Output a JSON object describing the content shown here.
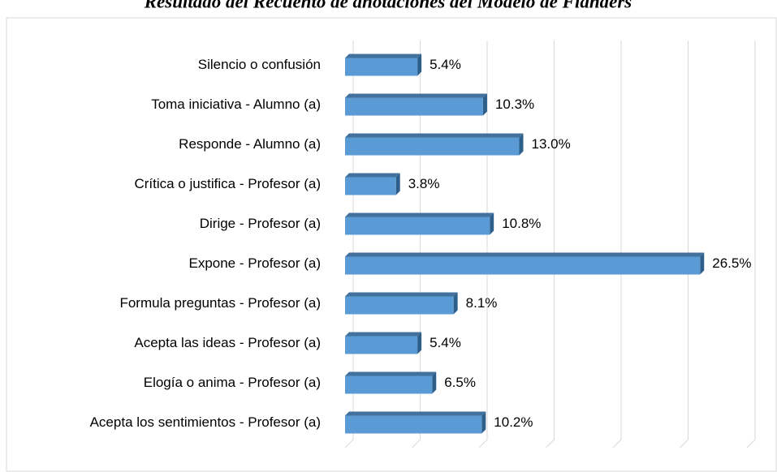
{
  "chart_data": {
    "type": "bar",
    "orientation": "horizontal",
    "title": "Resultado del Recuento de anotaciones del Modelo de Flanders",
    "categories": [
      "Silencio o confusión",
      "Toma iniciativa - Alumno (a)",
      "Responde - Alumno (a)",
      "Crítica o justifica - Profesor (a)",
      "Dirige - Profesor (a)",
      "Expone - Profesor (a)",
      "Formula preguntas - Profesor (a)",
      "Acepta las ideas - Profesor (a)",
      "Elogía o anima - Profesor (a)",
      "Acepta los sentimientos - Profesor (a)"
    ],
    "values": [
      5.4,
      10.3,
      13.0,
      3.8,
      10.8,
      26.5,
      8.1,
      5.4,
      6.5,
      10.2
    ],
    "value_labels": [
      "5.4%",
      "10.3%",
      "13.0%",
      "3.8%",
      "10.8%",
      "26.5%",
      "8.1%",
      "5.4%",
      "6.5%",
      "10.2%"
    ],
    "color": "#5b9bd5",
    "xlim": [
      0,
      30
    ],
    "xticks": [
      0,
      5,
      10,
      15,
      20,
      25,
      30
    ],
    "grid": true
  }
}
